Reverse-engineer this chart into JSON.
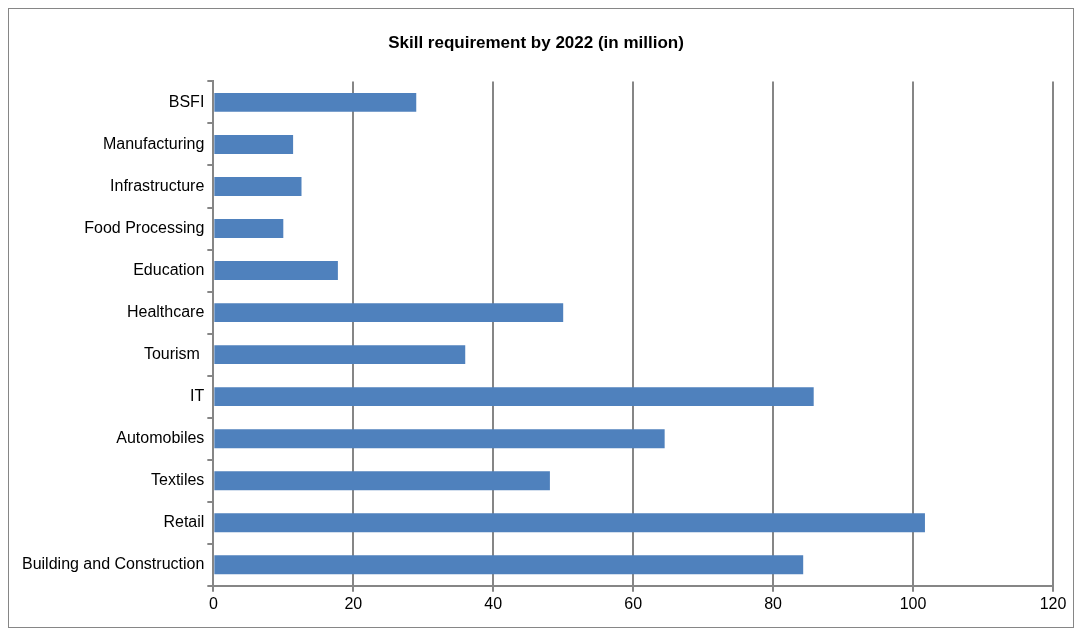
{
  "chart_data": {
    "type": "bar",
    "orientation": "horizontal",
    "title": "Skill requirement by 2022 (in million)",
    "categories": [
      "BSFI",
      "Manufacturing",
      "Infrastructure",
      "Food Processing",
      "Education",
      "Healthcare",
      "Tourism ",
      "IT",
      "Automobiles",
      "Textiles",
      "Retail",
      "Building and Construction"
    ],
    "values": [
      29,
      11.4,
      12.6,
      10,
      17.8,
      50,
      36,
      85.8,
      64.5,
      48.1,
      101.7,
      84.3
    ],
    "color": "#4f81bd",
    "xlim": [
      0,
      120
    ],
    "xticks": [
      0,
      20,
      40,
      60,
      80,
      100,
      120
    ],
    "grid": "x",
    "legend": false
  }
}
